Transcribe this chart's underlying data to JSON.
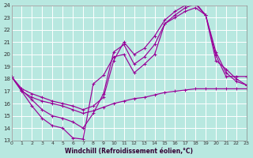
{
  "xlabel": "Windchill (Refroidissement éolien,°C)",
  "background_color": "#b8e8e0",
  "grid_color": "#ffffff",
  "line_color": "#990099",
  "xlim": [
    0,
    23
  ],
  "ylim": [
    13,
    24
  ],
  "xticks": [
    0,
    1,
    2,
    3,
    4,
    5,
    6,
    7,
    8,
    9,
    10,
    11,
    12,
    13,
    14,
    15,
    16,
    17,
    18,
    19,
    20,
    21,
    22,
    23
  ],
  "yticks": [
    13,
    14,
    15,
    16,
    17,
    18,
    19,
    20,
    21,
    22,
    23,
    24
  ],
  "line1_x": [
    0,
    1,
    2,
    3,
    4,
    5,
    6,
    7,
    8,
    9,
    10,
    11,
    12,
    13,
    14,
    15,
    16,
    17,
    18,
    19,
    20,
    21,
    22,
    23
  ],
  "line1_y": [
    18.2,
    17.0,
    15.8,
    14.8,
    14.2,
    14.0,
    13.2,
    13.1,
    17.6,
    18.3,
    19.8,
    20.0,
    18.5,
    19.2,
    20.0,
    22.5,
    23.2,
    23.8,
    24.1,
    23.2,
    19.9,
    18.2,
    18.2,
    18.2
  ],
  "line2_x": [
    0,
    1,
    2,
    3,
    4,
    5,
    6,
    7,
    8,
    9,
    10,
    11,
    12,
    13,
    14,
    15,
    16,
    17,
    18,
    19,
    20,
    21,
    22,
    23
  ],
  "line2_y": [
    18.2,
    17.0,
    16.5,
    16.2,
    16.0,
    15.8,
    15.5,
    15.2,
    15.4,
    15.7,
    16.0,
    16.2,
    16.4,
    16.5,
    16.7,
    16.9,
    17.0,
    17.1,
    17.2,
    17.2,
    17.2,
    17.2,
    17.2,
    17.2
  ],
  "line3_x": [
    0,
    1,
    2,
    3,
    4,
    5,
    6,
    7,
    8,
    9,
    10,
    11,
    12,
    13,
    14,
    15,
    16,
    17,
    18,
    19,
    20,
    21,
    22,
    23
  ],
  "line3_y": [
    18.2,
    17.2,
    16.8,
    16.5,
    16.2,
    16.0,
    15.8,
    15.5,
    15.8,
    16.5,
    19.5,
    21.0,
    20.0,
    20.5,
    21.5,
    22.8,
    23.5,
    24.0,
    24.2,
    23.2,
    19.5,
    18.8,
    18.0,
    17.5
  ],
  "line4_x": [
    0,
    1,
    2,
    3,
    4,
    5,
    6,
    7,
    8,
    9,
    10,
    11,
    12,
    13,
    14,
    15,
    16,
    17,
    18,
    19,
    20,
    21,
    22,
    23
  ],
  "line4_y": [
    18.2,
    17.1,
    16.3,
    15.5,
    15.0,
    14.8,
    14.5,
    14.0,
    15.2,
    16.8,
    20.2,
    20.8,
    19.2,
    19.8,
    20.8,
    22.5,
    23.0,
    23.5,
    23.8,
    23.2,
    20.2,
    18.5,
    17.8,
    17.5
  ]
}
